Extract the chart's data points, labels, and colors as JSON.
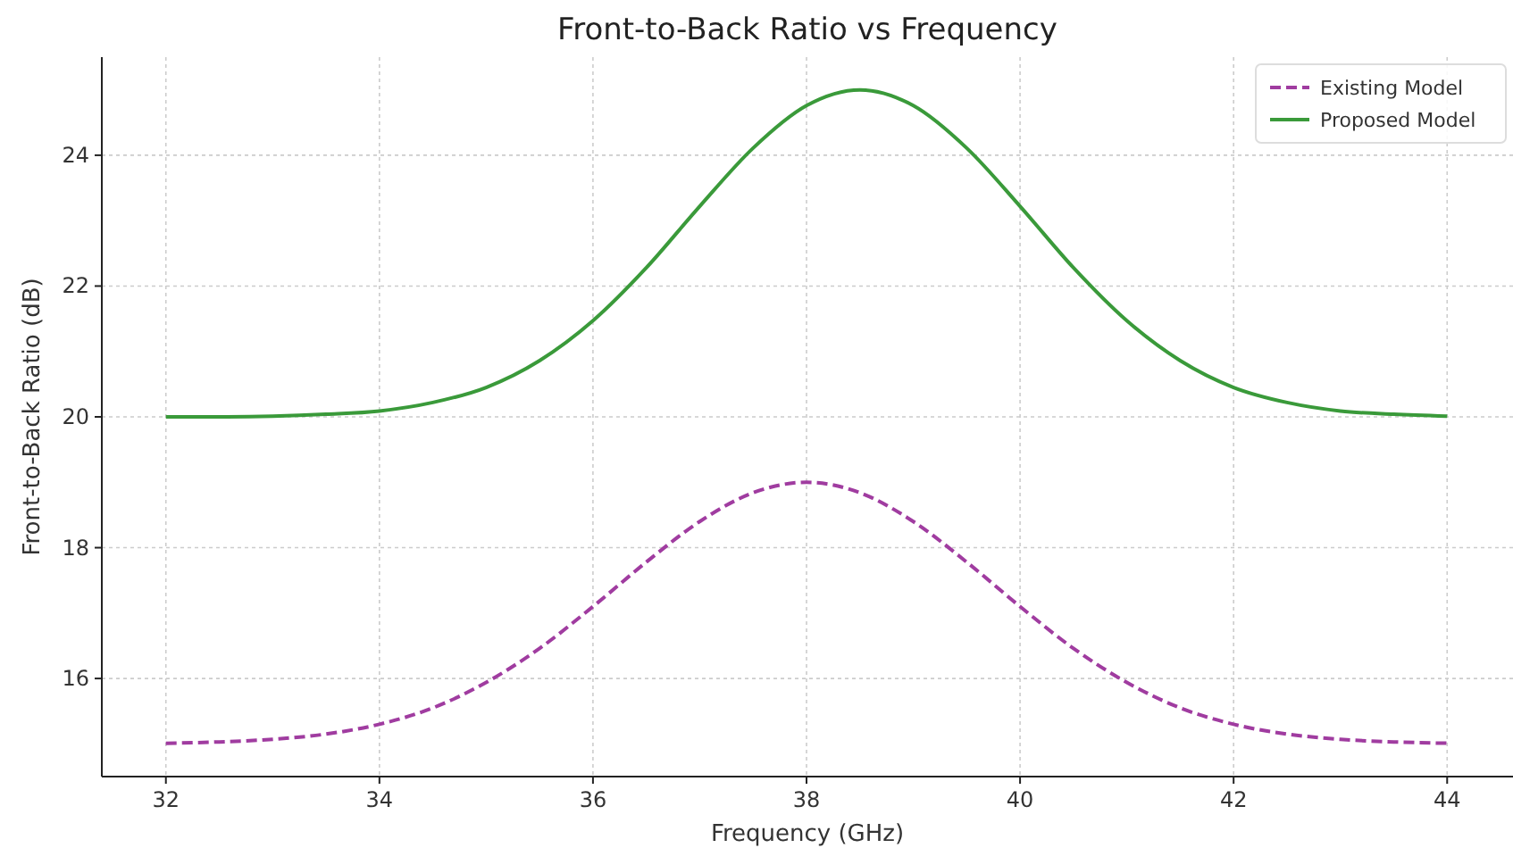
{
  "chart_data": {
    "type": "line",
    "title": "Front-to-Back Ratio vs Frequency",
    "xlabel": "Frequency (GHz)",
    "ylabel": "Front-to-Back Ratio (dB)",
    "x": [
      32,
      32.5,
      33,
      33.5,
      34,
      34.5,
      35,
      35.5,
      36,
      36.5,
      37,
      37.5,
      38,
      38.5,
      39,
      39.5,
      40,
      40.5,
      41,
      41.5,
      42,
      42.5,
      43,
      43.5,
      44
    ],
    "series": [
      {
        "name": "Existing Model",
        "color": "#a03ca0",
        "line_style": "dashed",
        "values": [
          15.01,
          15.03,
          15.07,
          15.15,
          15.3,
          15.55,
          15.94,
          16.46,
          17.1,
          17.78,
          18.4,
          18.84,
          19,
          18.84,
          18.4,
          17.78,
          17.1,
          16.46,
          15.94,
          15.55,
          15.3,
          15.15,
          15.07,
          15.03,
          15.01
        ]
      },
      {
        "name": "Proposed Model",
        "color": "#3a9a3a",
        "line_style": "solid",
        "values": [
          20,
          20,
          20.01,
          20.04,
          20.09,
          20.22,
          20.45,
          20.86,
          21.47,
          22.28,
          23.22,
          24.11,
          24.76,
          25,
          24.76,
          24.11,
          23.22,
          22.28,
          21.47,
          20.86,
          20.45,
          20.22,
          20.09,
          20.04,
          20.01
        ]
      }
    ],
    "xlim": [
      31.4,
      44.6
    ],
    "ylim": [
      14.5,
      25.5
    ],
    "xticks": [
      32,
      34,
      36,
      38,
      40,
      42,
      44
    ],
    "yticks": [
      16,
      18,
      20,
      22,
      24
    ],
    "grid": true,
    "legend": "top right"
  }
}
